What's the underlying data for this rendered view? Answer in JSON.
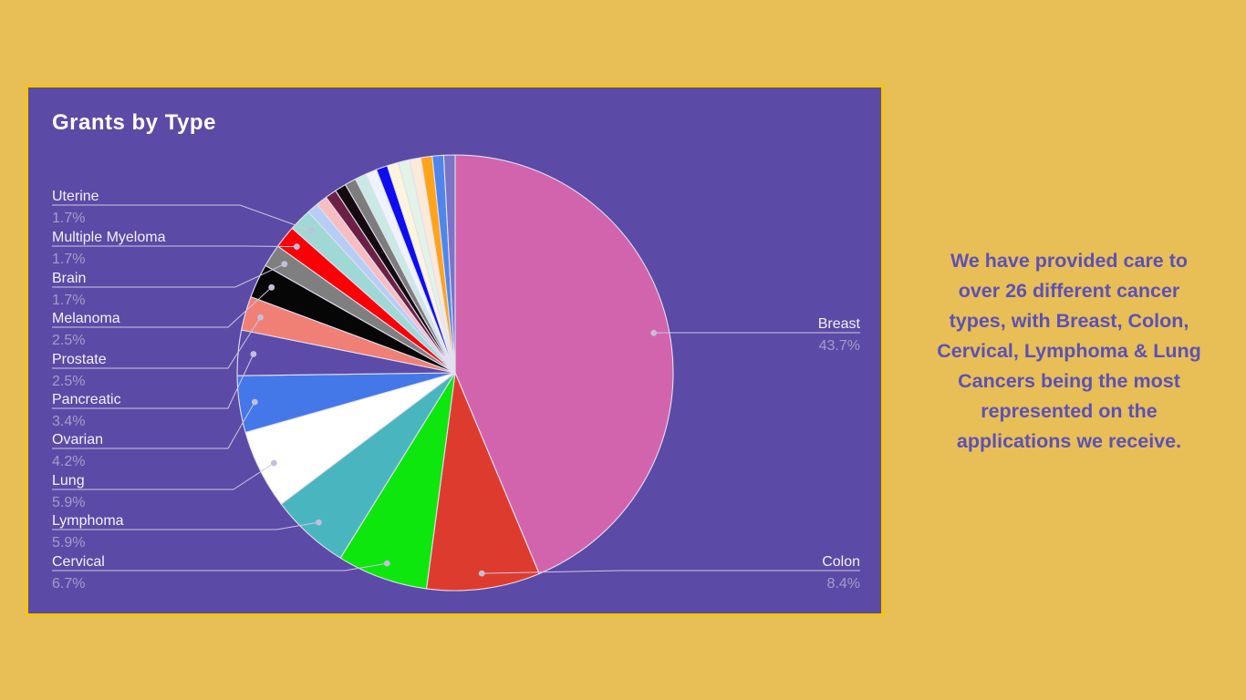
{
  "page": {
    "background": "#E8BE57"
  },
  "panel": {
    "background": "#5B4AA6",
    "border_color": "#F5C50A"
  },
  "chart_data": {
    "type": "pie",
    "title": "Grants by Type",
    "legend_position": "none",
    "labels_style": {
      "name_color": "#F3F1F9",
      "pct_color": "#A39EC7",
      "line_color": "#CCC8E0",
      "dot_color": "#C3BFDB",
      "slice_stroke": "#E2DFEF"
    },
    "slices": [
      {
        "label": "Breast",
        "pct": "43.7%",
        "count": 52,
        "color": "#D264AE",
        "side": "right"
      },
      {
        "label": "Colon",
        "pct": "8.4%",
        "count": 10,
        "color": "#DE3B2F",
        "side": "right"
      },
      {
        "label": "Cervical",
        "pct": "6.7%",
        "count": 8,
        "color": "#0DE70D",
        "side": "left"
      },
      {
        "label": "Lymphoma",
        "pct": "5.9%",
        "count": 7,
        "color": "#49B6BF",
        "side": "left"
      },
      {
        "label": "Lung",
        "pct": "5.9%",
        "count": 7,
        "color": "#FFFFFF",
        "side": "left"
      },
      {
        "label": "Ovarian",
        "pct": "4.2%",
        "count": 5,
        "color": "#4478E8",
        "side": "left"
      },
      {
        "label": "Pancreatic",
        "pct": "3.4%",
        "count": 4,
        "color": "#5C4BA9",
        "side": "left"
      },
      {
        "label": "Prostate",
        "pct": "2.5%",
        "count": 3,
        "color": "#F07F76",
        "side": "left"
      },
      {
        "label": "Melanoma",
        "pct": "2.5%",
        "count": 3,
        "color": "#060606",
        "side": "left"
      },
      {
        "label": "Brain",
        "pct": "1.7%",
        "count": 2,
        "color": "#7F7F7F",
        "side": "left"
      },
      {
        "label": "Multiple Myeloma",
        "pct": "1.7%",
        "count": 2,
        "color": "#FB0007",
        "side": "left"
      },
      {
        "label": "Uterine",
        "pct": "1.7%",
        "count": 2,
        "color": "#A0D8D5",
        "side": "left"
      },
      {
        "label": null,
        "pct": null,
        "count": 1,
        "color": "#B7CDF6",
        "side": "none"
      },
      {
        "label": null,
        "pct": null,
        "count": 1,
        "color": "#F6BEC1",
        "side": "none"
      },
      {
        "label": null,
        "pct": null,
        "count": 1,
        "color": "#6C2144",
        "side": "none"
      },
      {
        "label": null,
        "pct": null,
        "count": 1,
        "color": "#140A10",
        "side": "none"
      },
      {
        "label": null,
        "pct": null,
        "count": 1,
        "color": "#7D7D7D",
        "side": "none"
      },
      {
        "label": null,
        "pct": null,
        "count": 1,
        "color": "#C9E9E5",
        "side": "none"
      },
      {
        "label": null,
        "pct": null,
        "count": 1,
        "color": "#EEF3FE",
        "side": "none"
      },
      {
        "label": null,
        "pct": null,
        "count": 1,
        "color": "#0D0DF0",
        "side": "none"
      },
      {
        "label": null,
        "pct": null,
        "count": 1,
        "color": "#FCF4DF",
        "side": "none"
      },
      {
        "label": null,
        "pct": null,
        "count": 1,
        "color": "#E4F3E8",
        "side": "none"
      },
      {
        "label": null,
        "pct": null,
        "count": 1,
        "color": "#FBEAD9",
        "side": "none"
      },
      {
        "label": null,
        "pct": null,
        "count": 1,
        "color": "#FFA41A",
        "side": "none"
      },
      {
        "label": null,
        "pct": null,
        "count": 1,
        "color": "#4F86EC",
        "side": "none"
      },
      {
        "label": null,
        "pct": null,
        "count": 1,
        "color": "#7B74C6",
        "side": "none"
      }
    ]
  },
  "summary": {
    "color": "#5C51B5",
    "lines": [
      "We have provided care to",
      "over 26 different cancer",
      "types, with Breast, Colon,",
      "Cervical, Lymphoma & Lung",
      "Cancers being the most",
      "represented on the",
      "applications we receive."
    ]
  }
}
